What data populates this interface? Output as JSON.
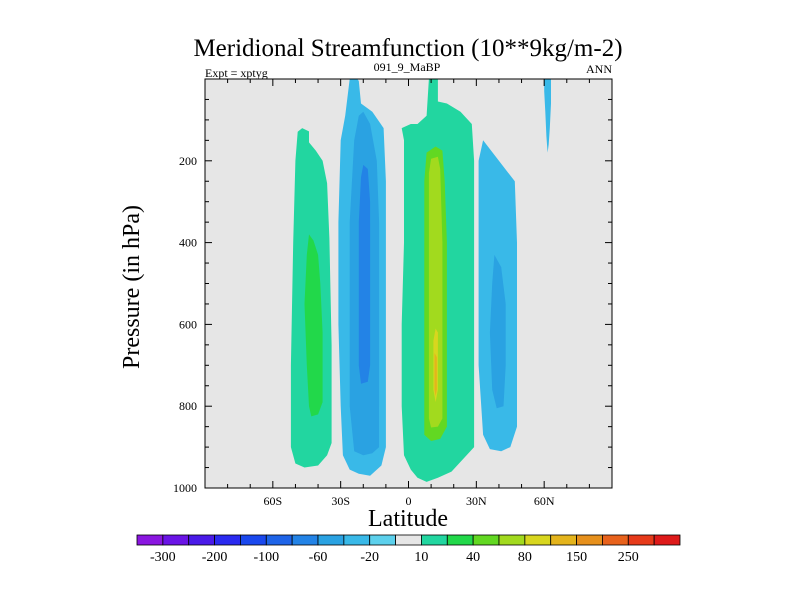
{
  "chart_data": {
    "type": "heatmap",
    "title": "Meridional Streamfunction (10**9kg/m-2)",
    "subtitle_left": "Expt = xptyg",
    "subtitle_center": "091_9_MaBP",
    "subtitle_right": "ANN",
    "xlabel": "Latitude",
    "ylabel": "Pressure (in hPa)",
    "xlim": [
      -90,
      90
    ],
    "ylim": [
      1000,
      0
    ],
    "x_ticks": [
      {
        "value": -60,
        "label": "60S"
      },
      {
        "value": -30,
        "label": "30S"
      },
      {
        "value": 0,
        "label": "0"
      },
      {
        "value": 30,
        "label": "30N"
      },
      {
        "value": 60,
        "label": "60N"
      }
    ],
    "y_ticks": [
      {
        "value": 200,
        "label": "200"
      },
      {
        "value": 400,
        "label": "400"
      },
      {
        "value": 600,
        "label": "600"
      },
      {
        "value": 800,
        "label": "800"
      },
      {
        "value": 1000,
        "label": "1000"
      }
    ],
    "background_color": "#e6e6e6",
    "colorbar": {
      "levels": [
        -300,
        -250,
        -200,
        -150,
        -100,
        -80,
        -60,
        -40,
        -20,
        -10,
        10,
        20,
        40,
        60,
        80,
        100,
        150,
        200,
        250,
        300
      ],
      "labels": [
        "-300",
        "-200",
        "-100",
        "-60",
        "-20",
        "10",
        "40",
        "80",
        "150",
        "250"
      ],
      "label_after_box": [
        1,
        3,
        5,
        7,
        9,
        11,
        13,
        15,
        17,
        19
      ],
      "colors": [
        "#8a16e0",
        "#6a14e6",
        "#4a1ae8",
        "#2a2af0",
        "#1a48ee",
        "#1e64e8",
        "#2383e6",
        "#2aa2e2",
        "#39b9e8",
        "#5cd0ec",
        "#e6e6e6",
        "#22d6a0",
        "#22d84a",
        "#62d822",
        "#a2da1e",
        "#d8d61e",
        "#e4b41c",
        "#e6901c",
        "#e8621c",
        "#e63a1a",
        "#de1a1a"
      ]
    },
    "contours": [
      {
        "level": 10,
        "color": "#22d6a0",
        "points": [
          [
            -49,
            129
          ],
          [
            -47,
            120
          ],
          [
            -44,
            128
          ],
          [
            -44,
            155
          ],
          [
            -41,
            175
          ],
          [
            -38,
            200
          ],
          [
            -36,
            255
          ],
          [
            -35,
            390
          ],
          [
            -34,
            650
          ],
          [
            -34,
            890
          ],
          [
            -36,
            920
          ],
          [
            -40,
            945
          ],
          [
            -46,
            950
          ],
          [
            -50,
            940
          ],
          [
            -52,
            900
          ],
          [
            -52,
            700
          ],
          [
            -51,
            400
          ],
          [
            -50,
            200
          ]
        ]
      },
      {
        "level": 20,
        "color": "#22d84a",
        "points": [
          [
            -44,
            380
          ],
          [
            -42,
            395
          ],
          [
            -40,
            430
          ],
          [
            -39,
            500
          ],
          [
            -38,
            620
          ],
          [
            -38,
            790
          ],
          [
            -40,
            820
          ],
          [
            -43,
            825
          ],
          [
            -44,
            800
          ],
          [
            -45,
            700
          ],
          [
            -46,
            550
          ],
          [
            -45,
            430
          ]
        ]
      },
      {
        "level": 20,
        "color": "#22d84a",
        "points": [
          [
            1,
            120
          ],
          [
            3,
            130
          ],
          [
            5,
            150
          ],
          [
            9,
            130
          ],
          [
            12,
            125
          ],
          [
            16,
            128
          ],
          [
            18,
            160
          ],
          [
            18,
            300
          ],
          [
            18,
            600
          ],
          [
            18,
            850
          ],
          [
            15,
            860
          ],
          [
            12,
            880
          ],
          [
            6,
            885
          ],
          [
            2,
            870
          ],
          [
            1,
            700
          ],
          [
            1,
            400
          ],
          [
            1,
            200
          ]
        ]
      },
      {
        "level": 10,
        "color": "#22d6a0",
        "points": [
          [
            9,
            0
          ],
          [
            11,
            -10
          ],
          [
            13,
            0
          ],
          [
            13,
            55
          ],
          [
            17,
            60
          ],
          [
            23,
            80
          ],
          [
            28,
            110
          ],
          [
            29,
            200
          ],
          [
            29,
            500
          ],
          [
            29,
            800
          ],
          [
            29,
            900
          ],
          [
            24,
            930
          ],
          [
            19,
            960
          ],
          [
            13,
            975
          ],
          [
            8,
            985
          ],
          [
            4,
            975
          ],
          [
            1,
            955
          ],
          [
            -2,
            920
          ],
          [
            -3,
            800
          ],
          [
            -3,
            600
          ],
          [
            -2,
            400
          ],
          [
            -2,
            150
          ],
          [
            -3,
            120
          ],
          [
            1,
            110
          ],
          [
            4,
            110
          ],
          [
            8,
            90
          ]
        ]
      },
      {
        "level": 40,
        "color": "#62d822",
        "points": [
          [
            8,
            180
          ],
          [
            12,
            165
          ],
          [
            15,
            175
          ],
          [
            16,
            250
          ],
          [
            17,
            400
          ],
          [
            17,
            600
          ],
          [
            17,
            850
          ],
          [
            14,
            880
          ],
          [
            10,
            885
          ],
          [
            7,
            870
          ],
          [
            7,
            700
          ],
          [
            7,
            450
          ],
          [
            7,
            250
          ]
        ]
      },
      {
        "level": 60,
        "color": "#a2da1e",
        "points": [
          [
            10,
            195
          ],
          [
            13,
            190
          ],
          [
            14,
            220
          ],
          [
            15,
            400
          ],
          [
            15,
            600
          ],
          [
            15,
            830
          ],
          [
            13,
            850
          ],
          [
            10,
            852
          ],
          [
            9,
            830
          ],
          [
            9,
            600
          ],
          [
            9,
            350
          ],
          [
            9,
            230
          ]
        ]
      },
      {
        "level": 80,
        "color": "#d8d61e",
        "points": [
          [
            12,
            610
          ],
          [
            13,
            620
          ],
          [
            13,
            760
          ],
          [
            12,
            790
          ],
          [
            11,
            760
          ],
          [
            11,
            640
          ]
        ]
      },
      {
        "level": 100,
        "color": "#e4b41c",
        "points": [
          [
            11.5,
            670
          ],
          [
            12.5,
            680
          ],
          [
            12.5,
            760
          ],
          [
            12,
            775
          ],
          [
            11.5,
            760
          ]
        ]
      },
      {
        "level": -10,
        "color": "#39b9e8",
        "points": [
          [
            -26,
            0
          ],
          [
            -24,
            -10
          ],
          [
            -22,
            5
          ],
          [
            -21,
            60
          ],
          [
            -16,
            80
          ],
          [
            -11,
            120
          ],
          [
            -10,
            250
          ],
          [
            -10,
            500
          ],
          [
            -10,
            800
          ],
          [
            -10,
            900
          ],
          [
            -12,
            945
          ],
          [
            -17,
            970
          ],
          [
            -22,
            965
          ],
          [
            -26,
            955
          ],
          [
            -29,
            920
          ],
          [
            -30,
            800
          ],
          [
            -31,
            600
          ],
          [
            -31,
            350
          ],
          [
            -30,
            150
          ],
          [
            -28,
            90
          ]
        ]
      },
      {
        "level": -20,
        "color": "#2aa2e2",
        "points": [
          [
            -20,
            80
          ],
          [
            -17,
            110
          ],
          [
            -14,
            200
          ],
          [
            -13,
            350
          ],
          [
            -13,
            600
          ],
          [
            -13,
            900
          ],
          [
            -16,
            915
          ],
          [
            -20,
            920
          ],
          [
            -24,
            910
          ],
          [
            -26,
            800
          ],
          [
            -26,
            600
          ],
          [
            -26,
            350
          ],
          [
            -24,
            150
          ],
          [
            -22,
            90
          ]
        ]
      },
      {
        "level": -40,
        "color": "#2383e6",
        "points": [
          [
            -20,
            210
          ],
          [
            -18,
            220
          ],
          [
            -17,
            300
          ],
          [
            -17,
            550
          ],
          [
            -17,
            700
          ],
          [
            -18,
            740
          ],
          [
            -21,
            745
          ],
          [
            -22,
            700
          ],
          [
            -22,
            550
          ],
          [
            -22,
            350
          ],
          [
            -21,
            240
          ]
        ]
      },
      {
        "level": -10,
        "color": "#39b9e8",
        "points": [
          [
            33,
            150
          ],
          [
            40,
            200
          ],
          [
            47,
            250
          ],
          [
            48,
            400
          ],
          [
            48,
            700
          ],
          [
            48,
            850
          ],
          [
            45,
            900
          ],
          [
            41,
            910
          ],
          [
            36,
            905
          ],
          [
            33,
            870
          ],
          [
            31,
            700
          ],
          [
            31,
            500
          ],
          [
            31,
            300
          ],
          [
            31,
            200
          ]
        ]
      },
      {
        "level": -20,
        "color": "#2aa2e2",
        "points": [
          [
            38,
            430
          ],
          [
            41,
            460
          ],
          [
            43,
            550
          ],
          [
            43,
            700
          ],
          [
            42,
            800
          ],
          [
            39,
            805
          ],
          [
            37,
            760
          ],
          [
            36,
            620
          ],
          [
            37,
            500
          ]
        ]
      },
      {
        "level": -10,
        "color": "#39b9e8",
        "points": [
          [
            60,
            0
          ],
          [
            61,
            -10
          ],
          [
            63,
            0
          ],
          [
            63,
            60
          ],
          [
            62.5,
            120
          ],
          [
            62,
            160
          ],
          [
            61.5,
            180
          ],
          [
            61,
            140
          ],
          [
            60.5,
            80
          ],
          [
            60,
            30
          ]
        ]
      }
    ]
  }
}
